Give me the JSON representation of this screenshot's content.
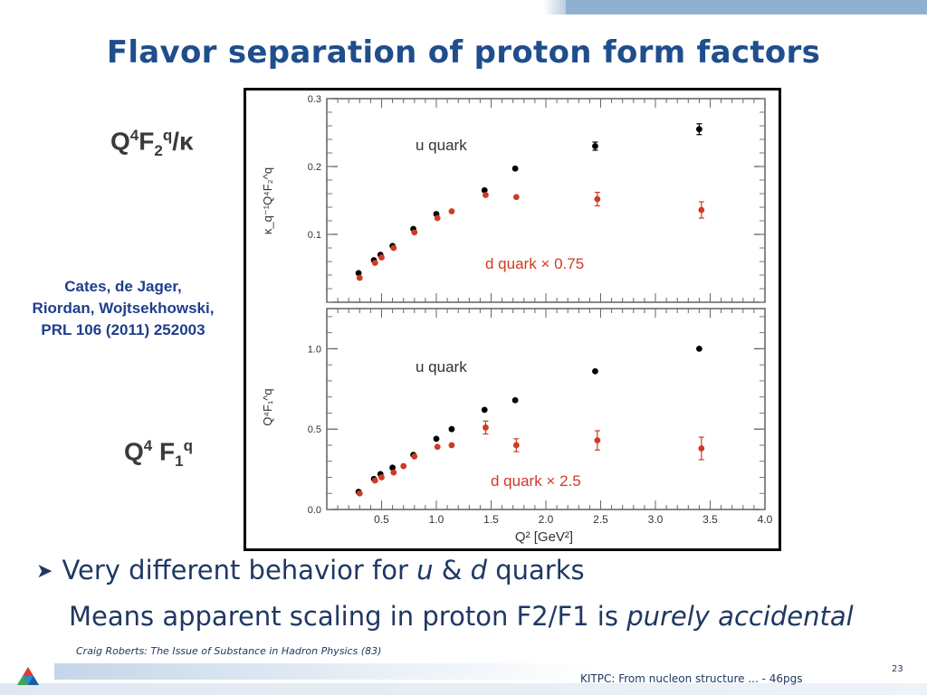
{
  "slide": {
    "title": "Flavor separation of proton form factors",
    "label_top": {
      "Q": "Q",
      "sup1": "4",
      "F": "F",
      "sub": "2",
      "sup2": "q",
      "rest": "/κ"
    },
    "label_bottom": {
      "Q": "Q",
      "sup1": "4",
      "F": " F",
      "sub": "1",
      "sup2": "q"
    },
    "citation": [
      "Cates, de Jager,",
      "Riordan, Wojtsekhowski,",
      "PRL 106 (2011) 252003"
    ],
    "bullet_parts": [
      "Very different behavior for ",
      "u",
      " & ",
      "d",
      " quarks"
    ],
    "sub_parts": [
      "Means apparent scaling in proton F2/F1 is ",
      "purely accidental"
    ],
    "footer_credit": "Craig Roberts: The Issue of Substance in Hadron Physics (83)",
    "footer_text": "KITPC: From nucleon structure ... - 46pgs",
    "page_number": "23",
    "bullet_icon": "arrow-bullet-icon"
  },
  "chart_data": [
    {
      "type": "scatter",
      "ylabel": "κ_q⁻¹Q⁴F₂^q",
      "xlim": [
        0,
        4.0
      ],
      "ylim": [
        0,
        0.3
      ],
      "yticks": [
        "0.1",
        "0.2",
        "0.3"
      ],
      "annotations": [
        "u quark",
        "d quark × 0.75"
      ],
      "series": [
        {
          "name": "u quark",
          "color": "#000000",
          "x": [
            0.29,
            0.43,
            0.49,
            0.6,
            0.79,
            1.0,
            1.44,
            1.72,
            2.45,
            3.4
          ],
          "y": [
            0.043,
            0.062,
            0.07,
            0.083,
            0.108,
            0.13,
            0.165,
            0.197,
            0.23,
            0.255
          ],
          "err": [
            0,
            0,
            0,
            0,
            0,
            0,
            0,
            0,
            0.006,
            0.008
          ]
        },
        {
          "name": "d quark × 0.75",
          "color": "#d03a24",
          "x": [
            0.3,
            0.44,
            0.5,
            0.61,
            0.8,
            1.01,
            1.14,
            1.45,
            1.73,
            2.47,
            3.42
          ],
          "y": [
            0.036,
            0.058,
            0.066,
            0.08,
            0.103,
            0.124,
            0.134,
            0.158,
            0.155,
            0.152,
            0.136
          ],
          "err": [
            0,
            0,
            0,
            0,
            0,
            0,
            0,
            0,
            0,
            0.01,
            0.012
          ]
        }
      ]
    },
    {
      "type": "scatter",
      "ylabel": "Q⁴F₁^q",
      "xlabel": "Q² [GeV²]",
      "xlim": [
        0,
        4.0
      ],
      "ylim": [
        0,
        1.25
      ],
      "xticks": [
        "0.5",
        "1.0",
        "1.5",
        "2.0",
        "2.5",
        "3.0",
        "3.5",
        "4.0"
      ],
      "yticks": [
        "0.0",
        "0.5",
        "1.0"
      ],
      "annotations": [
        "u quark",
        "d quark × 2.5"
      ],
      "series": [
        {
          "name": "u quark",
          "color": "#000000",
          "x": [
            0.29,
            0.43,
            0.49,
            0.6,
            0.79,
            1.0,
            1.14,
            1.44,
            1.72,
            2.45,
            3.4
          ],
          "y": [
            0.11,
            0.19,
            0.22,
            0.26,
            0.34,
            0.44,
            0.5,
            0.62,
            0.68,
            0.86,
            1.0
          ],
          "err": [
            0,
            0,
            0,
            0,
            0,
            0,
            0,
            0,
            0,
            0,
            0
          ]
        },
        {
          "name": "d quark × 2.5",
          "color": "#d03a24",
          "x": [
            0.3,
            0.44,
            0.5,
            0.61,
            0.7,
            0.8,
            1.01,
            1.14,
            1.45,
            1.73,
            2.47,
            3.42
          ],
          "y": [
            0.1,
            0.18,
            0.2,
            0.23,
            0.27,
            0.33,
            0.39,
            0.4,
            0.51,
            0.4,
            0.43,
            0.38
          ],
          "err": [
            0,
            0,
            0,
            0,
            0,
            0,
            0,
            0,
            0.04,
            0.04,
            0.06,
            0.07
          ]
        }
      ]
    }
  ]
}
